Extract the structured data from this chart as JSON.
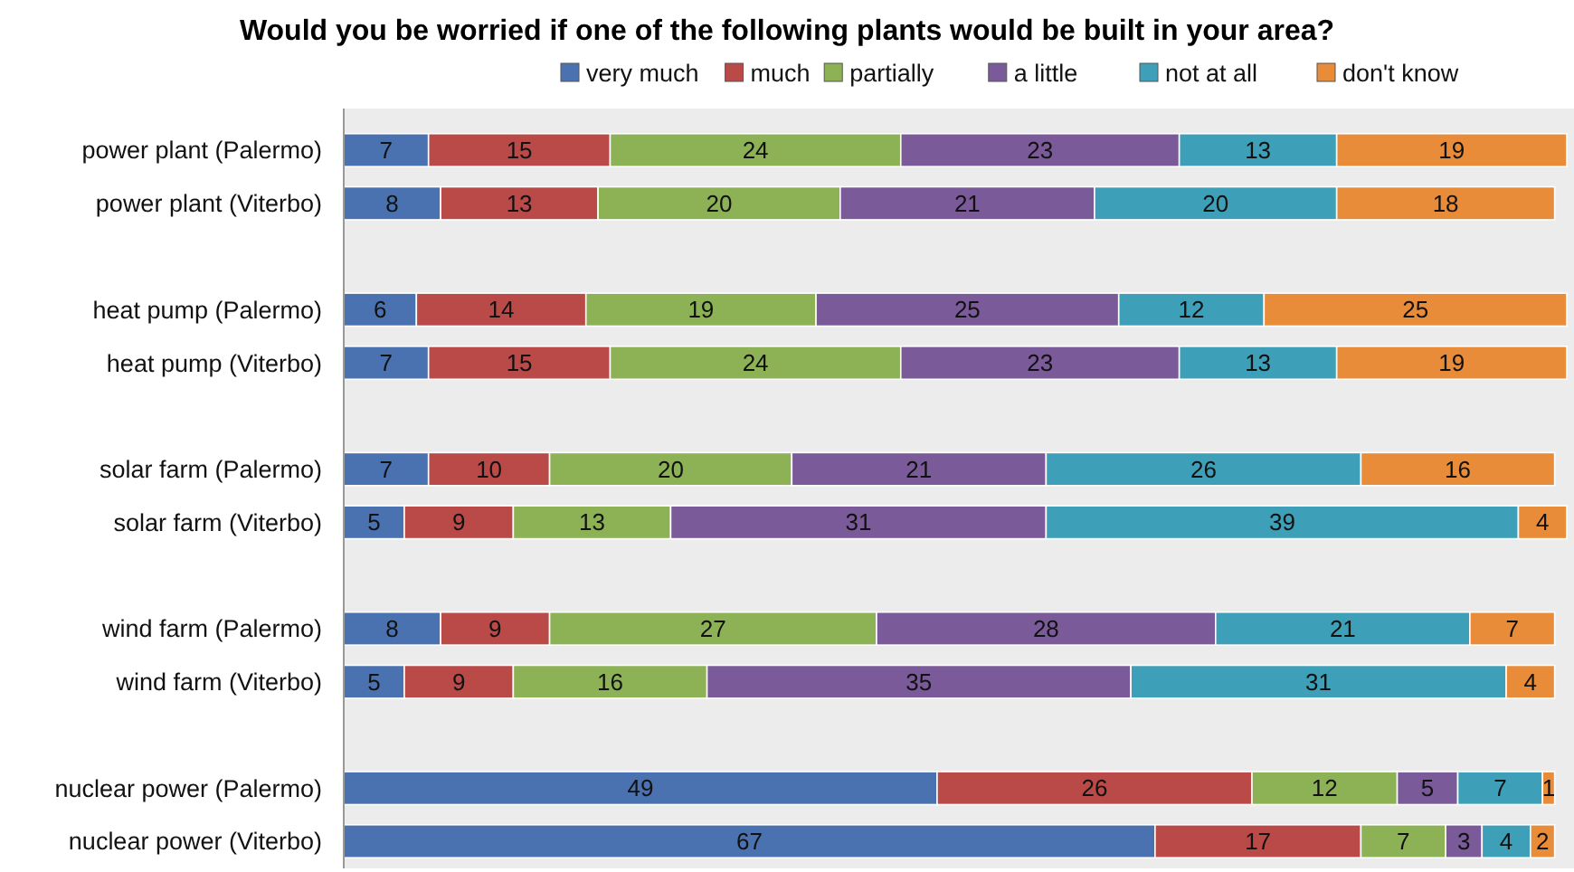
{
  "chart_data": {
    "type": "bar",
    "orientation": "horizontal",
    "stacked": true,
    "title": "Would you be worried if one of the following plants would be built in your area?",
    "legend": "top",
    "data_labels": true,
    "categories": [
      "power plant (Palermo)",
      "power plant (Viterbo)",
      null,
      "heat pump (Palermo)",
      "heat pump (Viterbo)",
      null,
      "solar farm (Palermo)",
      "solar farm (Viterbo)",
      null,
      "wind farm (Palermo)",
      "wind farm (Viterbo)",
      null,
      "nuclear power (Palermo)",
      "nuclear power (Viterbo)"
    ],
    "series": [
      {
        "name": "very much",
        "color": "#4a72b0",
        "values": [
          7,
          8,
          null,
          6,
          7,
          null,
          7,
          5,
          null,
          8,
          5,
          null,
          49,
          67
        ]
      },
      {
        "name": "much",
        "color": "#b94a48",
        "values": [
          15,
          13,
          null,
          14,
          15,
          null,
          10,
          9,
          null,
          9,
          9,
          null,
          26,
          17
        ]
      },
      {
        "name": "partially",
        "color": "#8db255",
        "values": [
          24,
          20,
          null,
          19,
          24,
          null,
          20,
          13,
          null,
          27,
          16,
          null,
          12,
          7
        ]
      },
      {
        "name": "a little",
        "color": "#7a5a98",
        "values": [
          23,
          21,
          null,
          25,
          23,
          null,
          21,
          31,
          null,
          28,
          35,
          null,
          5,
          3
        ]
      },
      {
        "name": "not at all",
        "color": "#3ea0b8",
        "values": [
          13,
          20,
          null,
          12,
          13,
          null,
          26,
          39,
          null,
          21,
          31,
          null,
          7,
          4
        ]
      },
      {
        "name": "don't know",
        "color": "#e98c3a",
        "values": [
          19,
          18,
          null,
          25,
          19,
          null,
          16,
          4,
          null,
          7,
          4,
          null,
          1,
          2
        ]
      }
    ]
  }
}
